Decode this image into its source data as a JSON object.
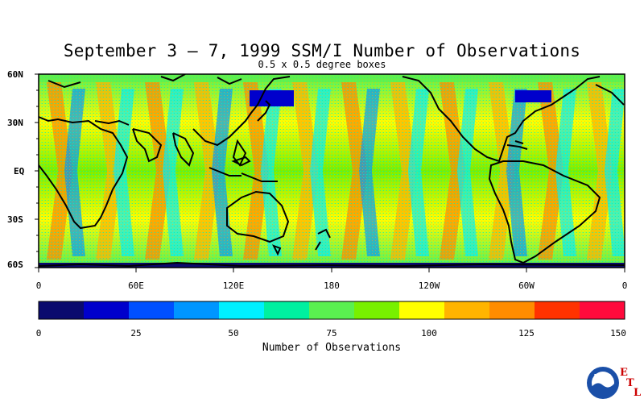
{
  "title": "September 3 – 7, 1999 SSM/I Number of Observations",
  "subtitle": "0.5 x 0.5 degree boxes",
  "lat_labels": [
    "60N",
    "30N",
    "EQ",
    "30S",
    "60S"
  ],
  "lon_labels": [
    "0",
    "60E",
    "120E",
    "180",
    "120W",
    "60W",
    "0"
  ],
  "colorbar": {
    "title": "Number of Observations",
    "tick_labels": [
      "0",
      "25",
      "50",
      "75",
      "100",
      "125",
      "150"
    ],
    "colors": [
      "#0a0a6e",
      "#0000cc",
      "#0050ff",
      "#0096ff",
      "#00f0ff",
      "#00f0a0",
      "#5af050",
      "#78f000",
      "#ffff00",
      "#ffb400",
      "#ff8c00",
      "#ff3200",
      "#ff0a3c"
    ]
  },
  "logo": {
    "text": "NOAA",
    "letters": [
      "E",
      "T",
      "L"
    ]
  }
}
